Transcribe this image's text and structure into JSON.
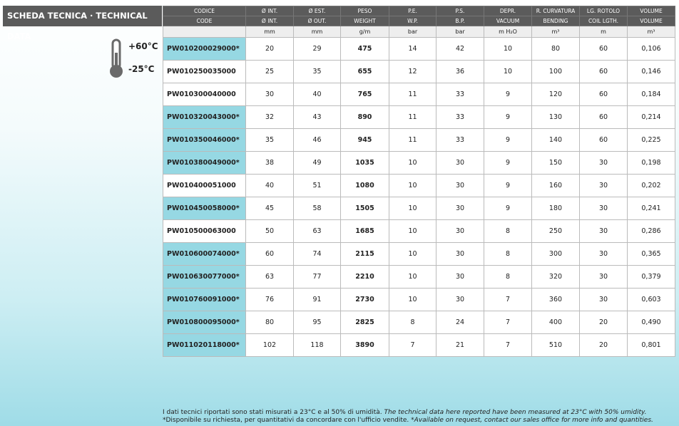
{
  "header": {
    "title": "SCHEDA TECNICA · TECHNICAL DATA"
  },
  "temps": {
    "max": "+60°C",
    "min": "-25°C"
  },
  "table": {
    "header_it": [
      "CODICE",
      "Ø INT.",
      "Ø EST.",
      "PESO",
      "P.E.",
      "P.S.",
      "DEPR.",
      "R. CURVATURA",
      "LG. ROTOLO",
      "VOLUME"
    ],
    "header_en": [
      "CODE",
      "Ø INT.",
      "Ø OUT.",
      "WEIGHT",
      "W.P.",
      "B.P.",
      "VACUUM",
      "BENDING",
      "COIL LGTH.",
      "VOLUME"
    ],
    "units": [
      "mm",
      "mm",
      "g/m",
      "bar",
      "bar",
      "m H₂O",
      "m³",
      "m",
      "m³"
    ],
    "rows": [
      [
        "PW010200029000*",
        "20",
        "29",
        "475",
        "14",
        "42",
        "10",
        "80",
        "60",
        "0,106"
      ],
      [
        "PW010250035000",
        "25",
        "35",
        "655",
        "12",
        "36",
        "10",
        "100",
        "60",
        "0,146"
      ],
      [
        "PW010300040000",
        "30",
        "40",
        "765",
        "11",
        "33",
        "9",
        "120",
        "60",
        "0,184"
      ],
      [
        "PW010320043000*",
        "32",
        "43",
        "890",
        "11",
        "33",
        "9",
        "130",
        "60",
        "0,214"
      ],
      [
        "PW010350046000*",
        "35",
        "46",
        "945",
        "11",
        "33",
        "9",
        "140",
        "60",
        "0,225"
      ],
      [
        "PW010380049000*",
        "38",
        "49",
        "1035",
        "10",
        "30",
        "9",
        "150",
        "30",
        "0,198"
      ],
      [
        "PW010400051000",
        "40",
        "51",
        "1080",
        "10",
        "30",
        "9",
        "160",
        "30",
        "0,202"
      ],
      [
        "PW010450058000*",
        "45",
        "58",
        "1505",
        "10",
        "30",
        "9",
        "180",
        "30",
        "0,241"
      ],
      [
        "PW010500063000",
        "50",
        "63",
        "1685",
        "10",
        "30",
        "8",
        "250",
        "30",
        "0,286"
      ],
      [
        "PW010600074000*",
        "60",
        "74",
        "2115",
        "10",
        "30",
        "8",
        "300",
        "30",
        "0,365"
      ],
      [
        "PW010630077000*",
        "63",
        "77",
        "2210",
        "10",
        "30",
        "8",
        "320",
        "30",
        "0,379"
      ],
      [
        "PW010760091000*",
        "76",
        "91",
        "2730",
        "10",
        "30",
        "7",
        "360",
        "30",
        "0,603"
      ],
      [
        "PW010800095000*",
        "80",
        "95",
        "2825",
        "8",
        "24",
        "7",
        "400",
        "20",
        "0,490"
      ],
      [
        "PW011020118000*",
        "102",
        "118",
        "3890",
        "7",
        "21",
        "7",
        "510",
        "20",
        "0,801"
      ]
    ]
  },
  "footnotes": [
    {
      "it": "I dati tecnici riportati sono stati misurati a 23°C e al 50% di umidità.",
      "en": "The technical data here reported have been measured at 23°C with 50% umidity."
    },
    {
      "it": "*Disponibile su richiesta, per quantitativi da concordare con l'ufficio vendite.",
      "en": "*Available on request, contact our sales office for more info and quantities."
    }
  ]
}
